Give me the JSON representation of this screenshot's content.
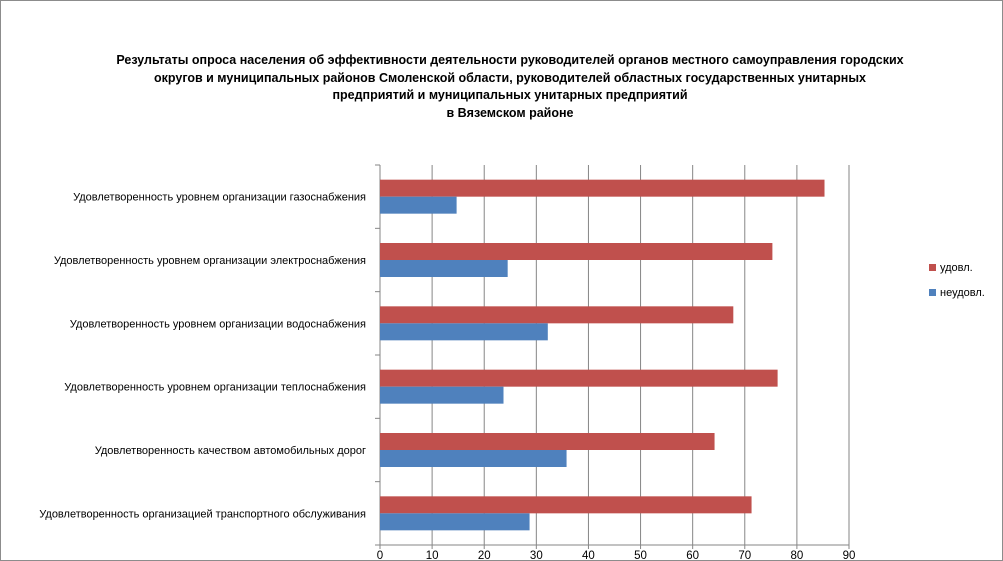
{
  "chart_data": {
    "type": "bar",
    "orientation": "horizontal",
    "title": "Результаты опроса населения об эффективности деятельности руководителей органов местного самоуправления городских\nокругов и муниципальных районов Смоленской области, руководителей областных государственных унитарных\nпредприятий и муниципальных унитарных предприятий\nв Вяземском районе",
    "categories": [
      "Удовлетворенность  уровнем  организации газоснабжения",
      "Удовлетворенность  уровнем организации электроснабжения",
      "Удовлетворенность  уровнем  организации водоснабжения",
      "Удовлетворенность  уровнем  организации теплоснабжения",
      "Удовлетворенность  качеством  автомобильных  дорог",
      "Удовлетворенность  организацией транспортного обслуживания"
    ],
    "series": [
      {
        "name": "удовл.",
        "color": "#c0504d",
        "values": [
          85.3,
          75.3,
          67.8,
          76.3,
          64.2,
          71.3
        ]
      },
      {
        "name": "неудовл.",
        "color": "#4f81bd",
        "values": [
          14.7,
          24.5,
          32.2,
          23.7,
          35.8,
          28.7
        ]
      }
    ],
    "xlim": [
      0,
      90
    ],
    "xticks": [
      0,
      10,
      20,
      30,
      40,
      50,
      60,
      70,
      80,
      90
    ],
    "xlabel": "",
    "ylabel": "",
    "grid": "vertical",
    "legend": "right"
  }
}
